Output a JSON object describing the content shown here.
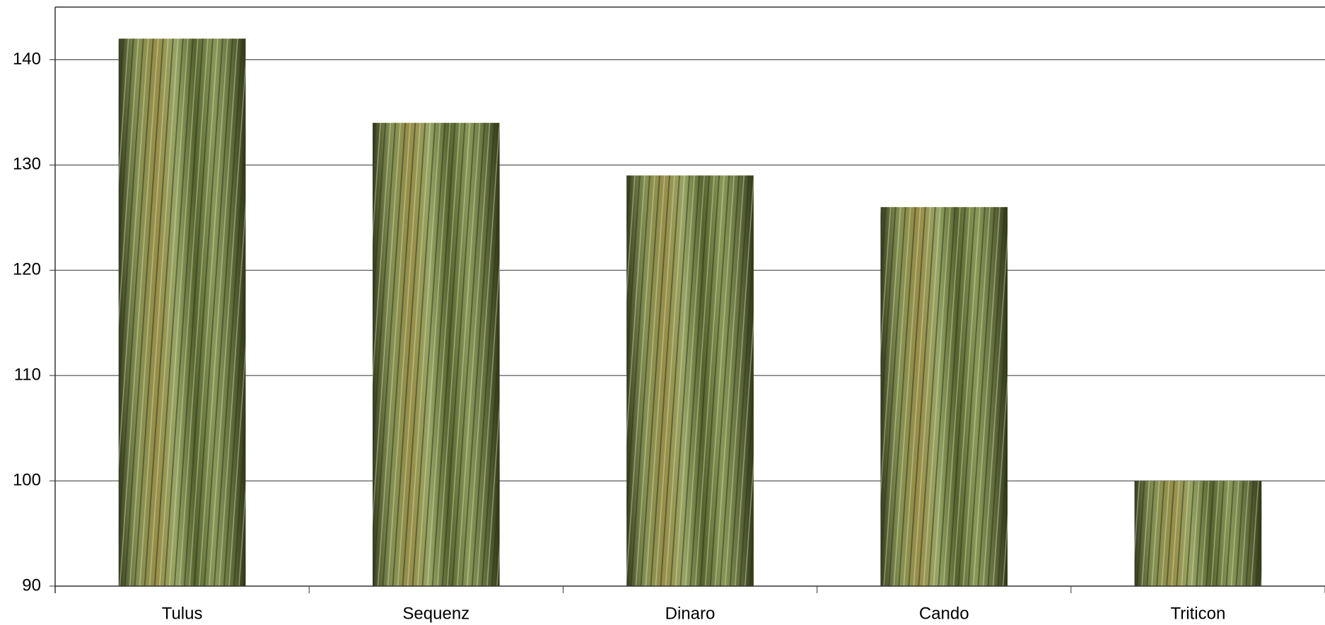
{
  "chart_data": {
    "type": "bar",
    "categories": [
      "Tulus",
      "Sequenz",
      "Dinaro",
      "Cando",
      "Triticon"
    ],
    "values": [
      142,
      134,
      129,
      126,
      100
    ],
    "color": "#6f7d3c",
    "ylim": [
      90,
      145
    ],
    "yticks": [
      90,
      100,
      110,
      120,
      130,
      140
    ],
    "grid": true
  }
}
